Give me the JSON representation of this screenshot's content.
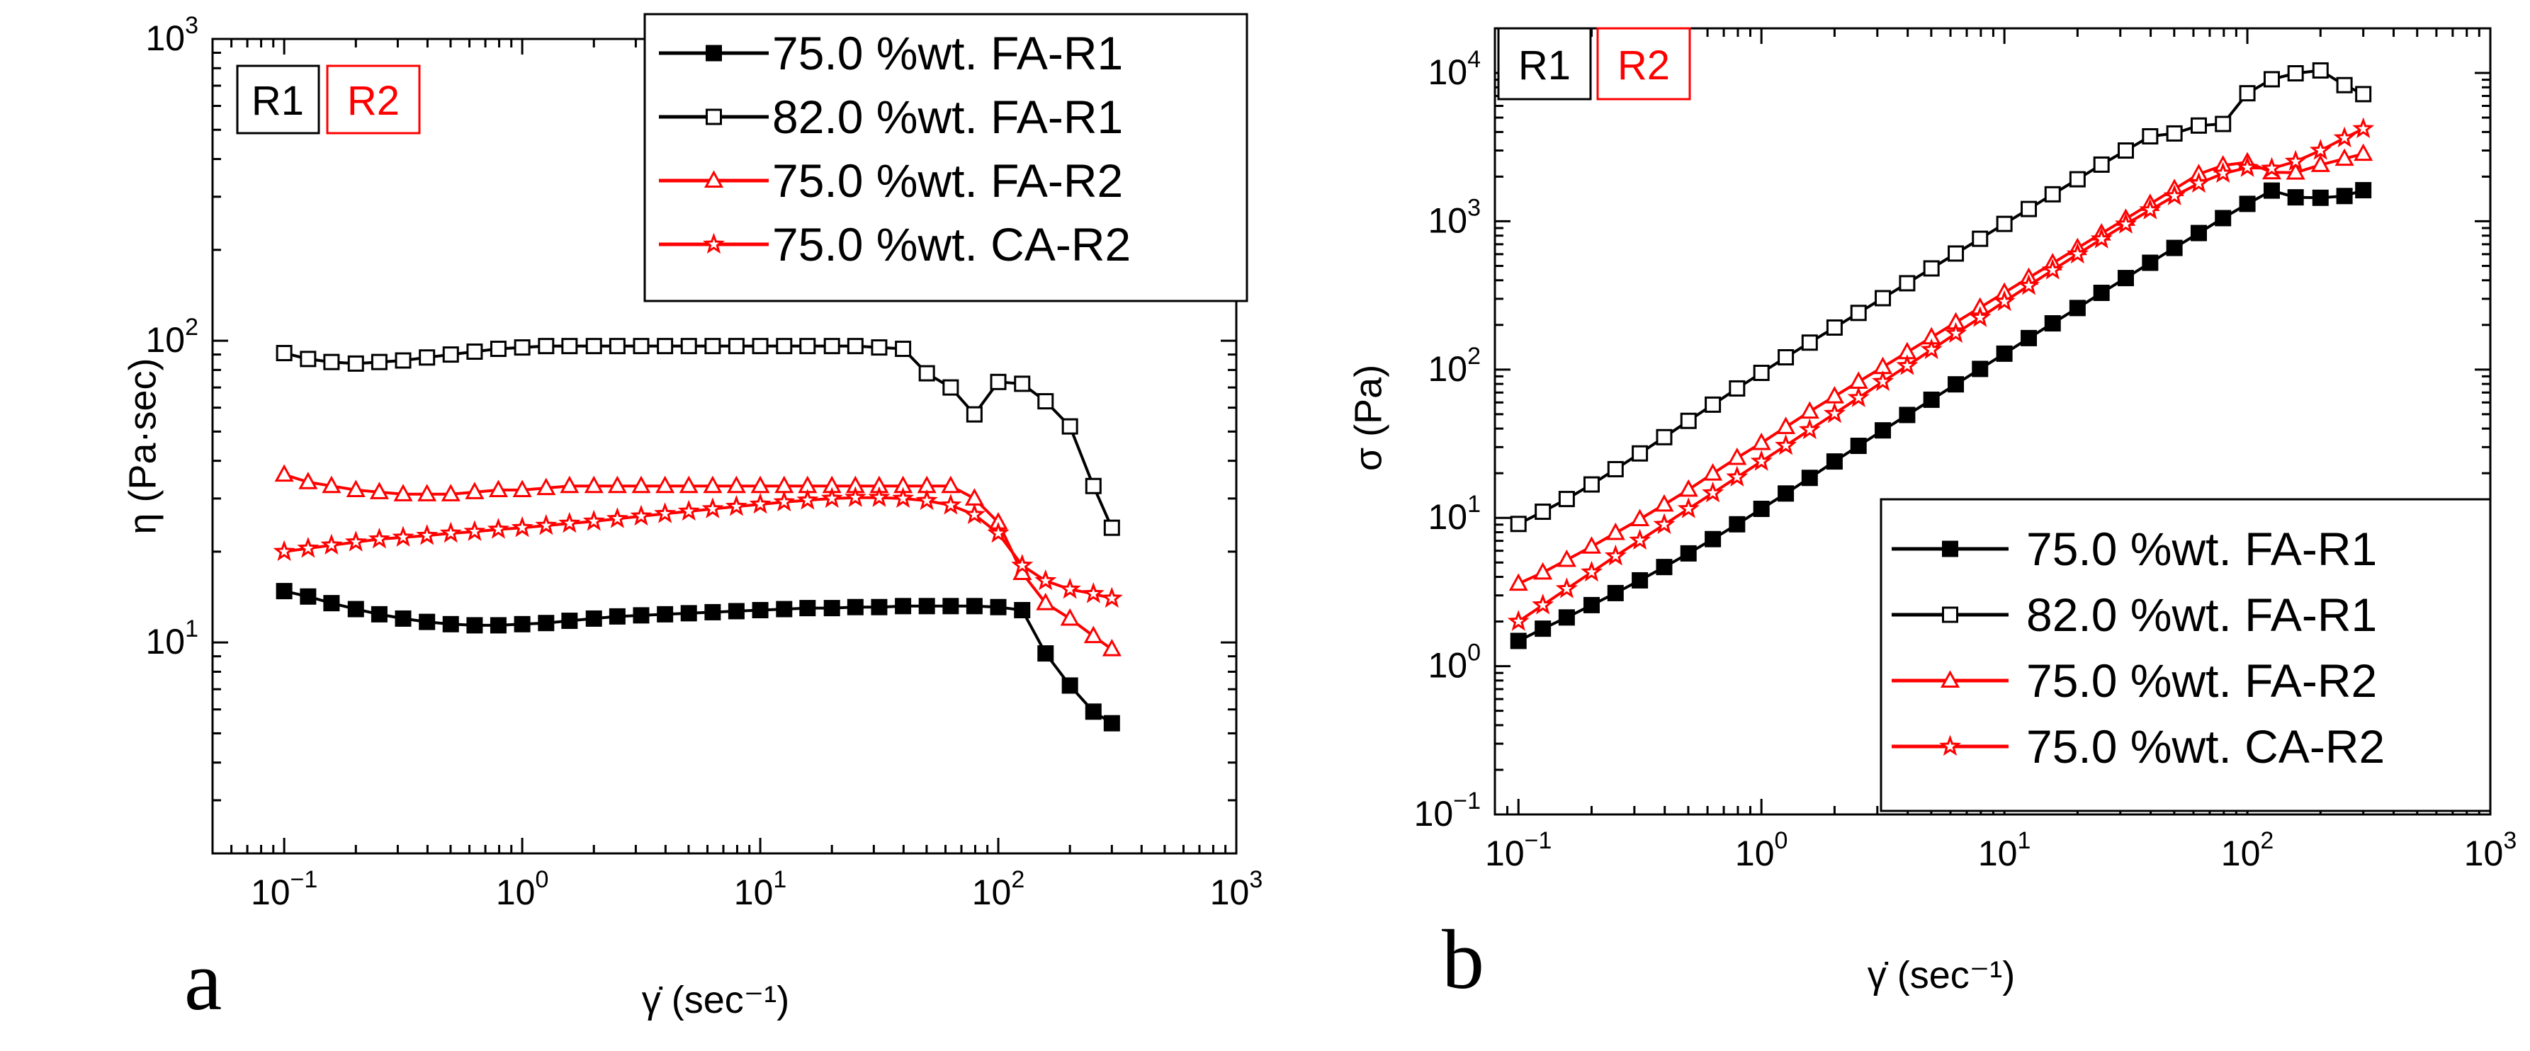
{
  "colors": {
    "black": "#000000",
    "red": "#ff0000"
  },
  "chart_data": [
    {
      "type": "line",
      "panel_label": "a",
      "xlabel": "γ̇ (sec⁻¹)",
      "ylabel": "η (Pa·sec)",
      "xscale": "log",
      "yscale": "log",
      "xlim": [
        0.05,
        1000
      ],
      "ylim": [
        2,
        1000
      ],
      "x_ticks": [
        {
          "exp": "−1",
          "value": 0.1
        },
        {
          "exp": "0",
          "value": 1
        },
        {
          "exp": "1",
          "value": 10
        },
        {
          "exp": "2",
          "value": 100
        },
        {
          "exp": "3",
          "value": 1000
        }
      ],
      "y_ticks": [
        {
          "exp": "1",
          "value": 10
        },
        {
          "exp": "2",
          "value": 100
        },
        {
          "exp": "3",
          "value": 1000
        }
      ],
      "tick_base": "10",
      "tags": [
        {
          "text": "R1",
          "color": "#000000"
        },
        {
          "text": "R2",
          "color": "#ff0000"
        }
      ],
      "legend_position": "top-right",
      "series": [
        {
          "name": "75.0 %wt. FA-R1",
          "color": "#000000",
          "marker": "square-filled",
          "x": [
            0.1,
            0.126,
            0.158,
            0.2,
            0.251,
            0.316,
            0.398,
            0.501,
            0.631,
            0.794,
            1,
            1.26,
            1.58,
            2,
            2.51,
            3.16,
            3.98,
            5.01,
            6.31,
            7.94,
            10,
            12.6,
            15.8,
            20,
            25.1,
            31.6,
            39.8,
            50.1,
            63.1,
            79.4,
            100,
            126,
            158,
            200,
            251,
            300
          ],
          "y": [
            14.8,
            14.2,
            13.5,
            12.9,
            12.4,
            12,
            11.7,
            11.5,
            11.4,
            11.4,
            11.5,
            11.6,
            11.8,
            12,
            12.2,
            12.3,
            12.4,
            12.5,
            12.6,
            12.7,
            12.8,
            12.9,
            13,
            13,
            13.1,
            13.1,
            13.2,
            13.2,
            13.2,
            13.2,
            13.1,
            12.8,
            9.2,
            7.2,
            5.9,
            5.4
          ]
        },
        {
          "name": "82.0 %wt. FA-R1",
          "color": "#000000",
          "marker": "square-open",
          "x": [
            0.1,
            0.126,
            0.158,
            0.2,
            0.251,
            0.316,
            0.398,
            0.501,
            0.631,
            0.794,
            1,
            1.26,
            1.58,
            2,
            2.51,
            3.16,
            3.98,
            5.01,
            6.31,
            7.94,
            10,
            12.6,
            15.8,
            20,
            25.1,
            31.6,
            39.8,
            50.1,
            63.1,
            79.4,
            100,
            126,
            158,
            200,
            251,
            300
          ],
          "y": [
            91,
            87,
            85,
            84,
            85,
            86,
            88,
            90,
            92,
            94,
            95,
            96,
            96,
            96,
            96,
            96,
            96,
            96,
            96,
            96,
            96,
            96,
            96,
            96,
            96,
            95,
            94,
            78,
            70,
            57,
            73,
            72,
            63,
            52,
            33,
            24
          ]
        },
        {
          "name": "75.0 %wt. FA-R2",
          "color": "#ff0000",
          "marker": "triangle-open",
          "x": [
            0.1,
            0.126,
            0.158,
            0.2,
            0.251,
            0.316,
            0.398,
            0.501,
            0.631,
            0.794,
            1,
            1.26,
            1.58,
            2,
            2.51,
            3.16,
            3.98,
            5.01,
            6.31,
            7.94,
            10,
            12.6,
            15.8,
            20,
            25.1,
            31.6,
            39.8,
            50.1,
            63.1,
            79.4,
            100,
            126,
            158,
            200,
            251,
            300
          ],
          "y": [
            36,
            34,
            33,
            32,
            31.5,
            31,
            31,
            31,
            31.5,
            32,
            32,
            32.5,
            33,
            33,
            33,
            33,
            33,
            33,
            33,
            33,
            33,
            33,
            33,
            33,
            33,
            33,
            33,
            33,
            33,
            30,
            25,
            17,
            13.5,
            12,
            10.5,
            9.5
          ]
        },
        {
          "name": "75.0 %wt. CA-R2",
          "color": "#ff0000",
          "marker": "star-open",
          "x": [
            0.1,
            0.126,
            0.158,
            0.2,
            0.251,
            0.316,
            0.398,
            0.501,
            0.631,
            0.794,
            1,
            1.26,
            1.58,
            2,
            2.51,
            3.16,
            3.98,
            5.01,
            6.31,
            7.94,
            10,
            12.6,
            15.8,
            20,
            25.1,
            31.6,
            39.8,
            50.1,
            63.1,
            79.4,
            100,
            126,
            158,
            200,
            251,
            300
          ],
          "y": [
            20,
            20.5,
            21,
            21.5,
            22,
            22.3,
            22.6,
            23,
            23.3,
            23.7,
            24,
            24.4,
            24.8,
            25.2,
            25.7,
            26.2,
            26.7,
            27.2,
            27.7,
            28.2,
            28.7,
            29.2,
            29.6,
            30,
            30.2,
            30.2,
            30,
            29.5,
            28.5,
            26.5,
            23,
            18,
            16,
            15,
            14.5,
            14
          ]
        }
      ]
    },
    {
      "type": "line",
      "panel_label": "b",
      "xlabel": "γ̇ (sec⁻¹)",
      "ylabel": "σ (Pa)",
      "xscale": "log",
      "yscale": "log",
      "xlim": [
        0.08,
        1000
      ],
      "ylim": [
        0.1,
        20000
      ],
      "x_ticks": [
        {
          "exp": "−1",
          "value": 0.1
        },
        {
          "exp": "0",
          "value": 1
        },
        {
          "exp": "1",
          "value": 10
        },
        {
          "exp": "2",
          "value": 100
        },
        {
          "exp": "3",
          "value": 1000
        }
      ],
      "y_ticks": [
        {
          "exp": "−1",
          "value": 0.1
        },
        {
          "exp": "0",
          "value": 1
        },
        {
          "exp": "1",
          "value": 10
        },
        {
          "exp": "2",
          "value": 100
        },
        {
          "exp": "3",
          "value": 1000
        },
        {
          "exp": "4",
          "value": 10000
        }
      ],
      "tick_base": "10",
      "tags": [
        {
          "text": "R1",
          "color": "#000000"
        },
        {
          "text": "R2",
          "color": "#ff0000"
        }
      ],
      "legend_position": "bottom-right",
      "series": [
        {
          "name": "75.0 %wt. FA-R1",
          "color": "#000000",
          "marker": "square-filled",
          "x": [
            0.1,
            0.126,
            0.158,
            0.2,
            0.251,
            0.316,
            0.398,
            0.501,
            0.631,
            0.794,
            1,
            1.26,
            1.58,
            2,
            2.51,
            3.16,
            3.98,
            5.01,
            6.31,
            7.94,
            10,
            12.6,
            15.8,
            20,
            25.1,
            31.6,
            39.8,
            50.1,
            63.1,
            79.4,
            100,
            126,
            158,
            200,
            251,
            300
          ],
          "y": [
            1.48,
            1.79,
            2.13,
            2.58,
            3.11,
            3.79,
            4.66,
            5.76,
            7.19,
            9.05,
            11.5,
            14.6,
            18.6,
            24,
            30.6,
            38.9,
            49.4,
            62.6,
            79.5,
            101,
            128,
            163,
            205,
            260,
            329,
            414,
            525,
            661,
            833,
            1050,
            1310,
            1610,
            1450,
            1440,
            1480,
            1620
          ]
        },
        {
          "name": "82.0 %wt. FA-R1",
          "color": "#000000",
          "marker": "square-open",
          "x": [
            0.1,
            0.126,
            0.158,
            0.2,
            0.251,
            0.316,
            0.398,
            0.501,
            0.631,
            0.794,
            1,
            1.26,
            1.58,
            2,
            2.51,
            3.16,
            3.98,
            5.01,
            6.31,
            7.94,
            10,
            12.6,
            15.8,
            20,
            25.1,
            31.6,
            39.8,
            50.1,
            63.1,
            79.4,
            100,
            126,
            158,
            200,
            251,
            300
          ],
          "y": [
            9.1,
            11,
            13.4,
            16.8,
            21.3,
            27.2,
            35,
            45.1,
            58,
            74.6,
            95,
            121,
            152,
            192,
            241,
            303,
            382,
            481,
            606,
            762,
            960,
            1210,
            1520,
            1920,
            2410,
            3000,
            3740,
            3910,
            4420,
            4530,
            7300,
            9070,
            9950,
            10400,
            8280,
            7200
          ]
        },
        {
          "name": "75.0 %wt. FA-R2",
          "color": "#ff0000",
          "marker": "triangle-open",
          "x": [
            0.1,
            0.126,
            0.158,
            0.2,
            0.251,
            0.316,
            0.398,
            0.501,
            0.631,
            0.794,
            1,
            1.26,
            1.58,
            2,
            2.51,
            3.16,
            3.98,
            5.01,
            6.31,
            7.94,
            10,
            12.6,
            15.8,
            20,
            25.1,
            31.6,
            39.8,
            50.1,
            63.1,
            79.4,
            100,
            126,
            158,
            200,
            251,
            300
          ],
          "y": [
            3.6,
            4.28,
            5.21,
            6.4,
            7.91,
            9.8,
            12.3,
            15.5,
            19.9,
            25.4,
            32,
            41,
            52.1,
            66,
            82.8,
            104,
            131,
            165,
            208,
            262,
            330,
            416,
            521,
            660,
            828,
            1040,
            1310,
            1650,
            2080,
            2380,
            2500,
            2140,
            2130,
            2400,
            2640,
            2850
          ]
        },
        {
          "name": "75.0 %wt. CA-R2",
          "color": "#ff0000",
          "marker": "star-open",
          "x": [
            0.1,
            0.126,
            0.158,
            0.2,
            0.251,
            0.316,
            0.398,
            0.501,
            0.631,
            0.794,
            1,
            1.26,
            1.58,
            2,
            2.51,
            3.16,
            3.98,
            5.01,
            6.31,
            7.94,
            10,
            12.6,
            15.8,
            20,
            25.1,
            31.6,
            39.8,
            50.1,
            63.1,
            79.4,
            100,
            126,
            158,
            200,
            251,
            300
          ],
          "y": [
            2,
            2.58,
            3.32,
            4.3,
            5.52,
            7.05,
            9,
            11.5,
            14.7,
            18.8,
            24,
            30.7,
            39.2,
            50.4,
            64.5,
            82.8,
            106,
            136,
            175,
            224,
            287,
            368,
            468,
            600,
            758,
            954,
            1190,
            1480,
            1800,
            2100,
            2300,
            2270,
            2530,
            3000,
            3640,
            4200
          ]
        }
      ]
    }
  ]
}
